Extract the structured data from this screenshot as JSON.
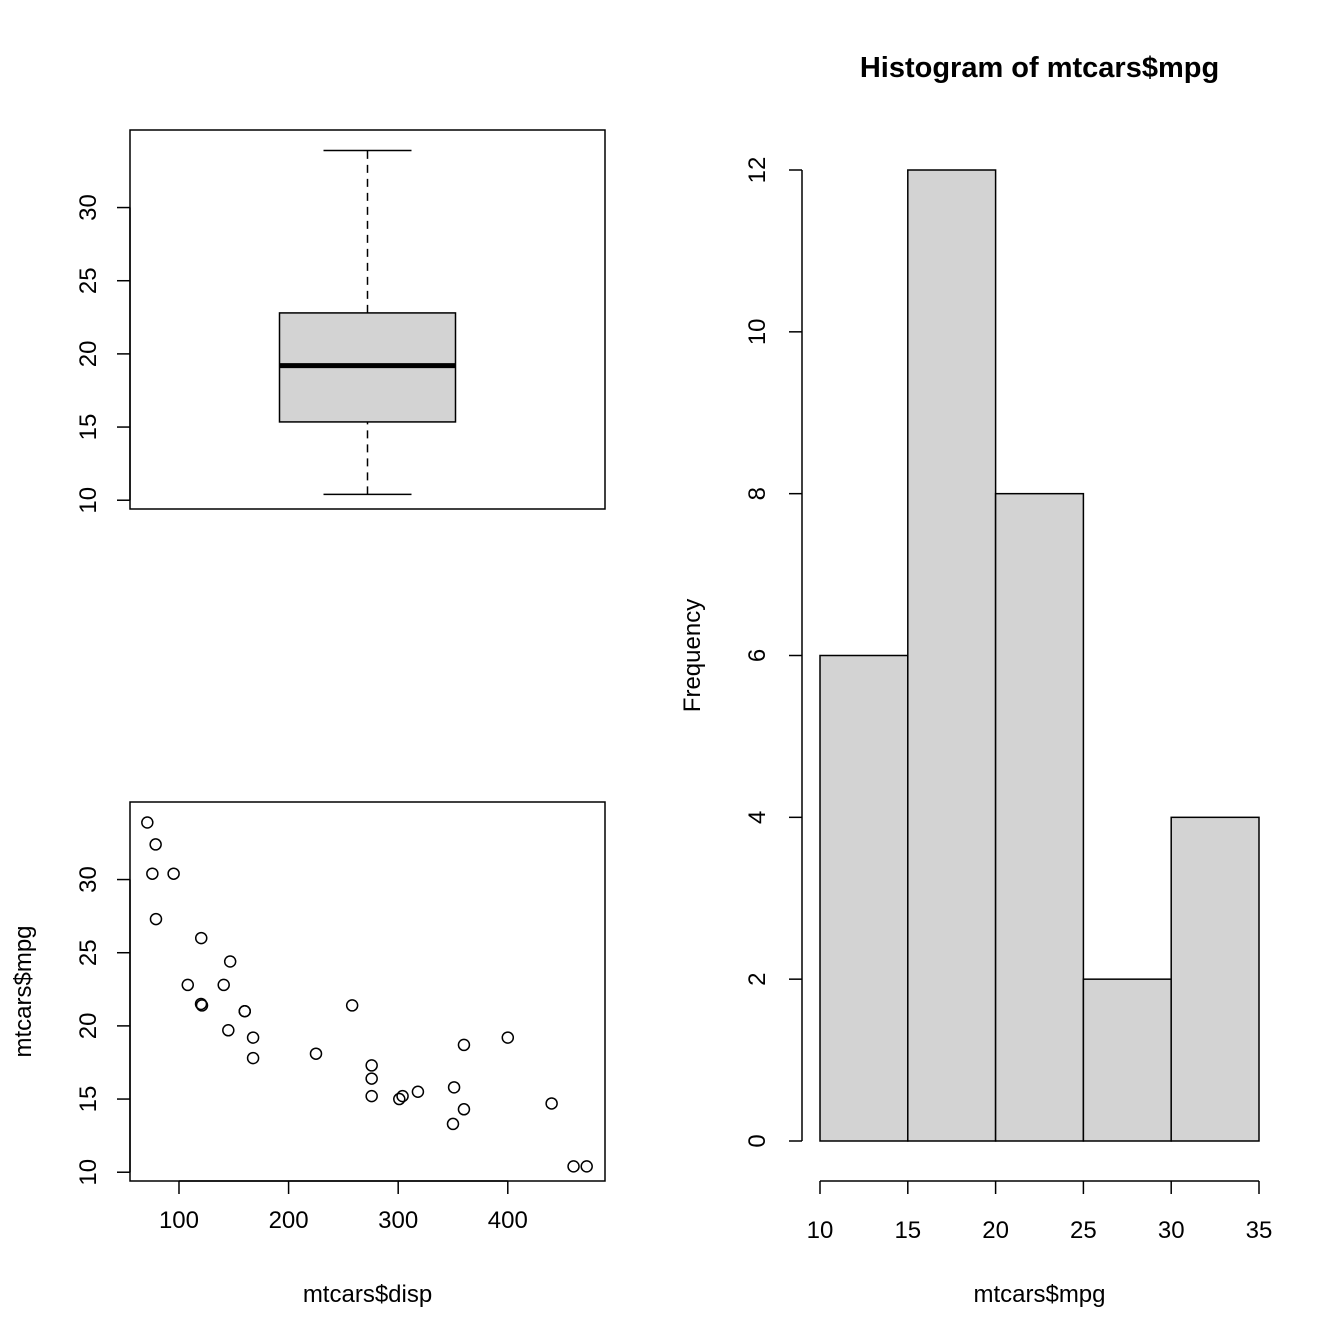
{
  "chart_data": [
    {
      "type": "boxplot",
      "title": "",
      "xlabel": "",
      "ylabel": "",
      "ylim": [
        9.4,
        35.3
      ],
      "y_ticks": [
        10,
        15,
        20,
        25,
        30
      ],
      "stats": {
        "min": 10.4,
        "q1": 15.35,
        "median": 19.2,
        "q3": 22.8,
        "max": 33.9
      },
      "box_fill": "#d3d3d3"
    },
    {
      "type": "scatter",
      "title": "",
      "xlabel": "mtcars$disp",
      "ylabel": "mtcars$mpg",
      "xlim": [
        55.3,
        488.7
      ],
      "ylim": [
        9.4,
        35.3
      ],
      "x_ticks": [
        100,
        200,
        300,
        400
      ],
      "y_ticks": [
        10,
        15,
        20,
        25,
        30
      ],
      "points": [
        {
          "x": 160,
          "y": 21.0
        },
        {
          "x": 160,
          "y": 21.0
        },
        {
          "x": 108,
          "y": 22.8
        },
        {
          "x": 258,
          "y": 21.4
        },
        {
          "x": 360,
          "y": 18.7
        },
        {
          "x": 225,
          "y": 18.1
        },
        {
          "x": 360,
          "y": 14.3
        },
        {
          "x": 146.7,
          "y": 24.4
        },
        {
          "x": 140.8,
          "y": 22.8
        },
        {
          "x": 167.6,
          "y": 19.2
        },
        {
          "x": 167.6,
          "y": 17.8
        },
        {
          "x": 275.8,
          "y": 16.4
        },
        {
          "x": 275.8,
          "y": 17.3
        },
        {
          "x": 275.8,
          "y": 15.2
        },
        {
          "x": 472,
          "y": 10.4
        },
        {
          "x": 460,
          "y": 10.4
        },
        {
          "x": 440,
          "y": 14.7
        },
        {
          "x": 78.7,
          "y": 32.4
        },
        {
          "x": 75.7,
          "y": 30.4
        },
        {
          "x": 71.1,
          "y": 33.9
        },
        {
          "x": 120.1,
          "y": 21.5
        },
        {
          "x": 318,
          "y": 15.5
        },
        {
          "x": 304,
          "y": 15.2
        },
        {
          "x": 350,
          "y": 13.3
        },
        {
          "x": 400,
          "y": 19.2
        },
        {
          "x": 79,
          "y": 27.3
        },
        {
          "x": 120.3,
          "y": 26.0
        },
        {
          "x": 95.1,
          "y": 30.4
        },
        {
          "x": 351,
          "y": 15.8
        },
        {
          "x": 145,
          "y": 19.7
        },
        {
          "x": 301,
          "y": 15.0
        },
        {
          "x": 121,
          "y": 21.4
        }
      ]
    },
    {
      "type": "histogram",
      "title": "Histogram of mtcars$mpg",
      "xlabel": "mtcars$mpg",
      "ylabel": "Frequency",
      "xlim": [
        10,
        35
      ],
      "ylim": [
        0,
        12
      ],
      "x_ticks": [
        10,
        15,
        20,
        25,
        30,
        35
      ],
      "y_ticks": [
        0,
        2,
        4,
        6,
        8,
        10,
        12
      ],
      "bins": [
        {
          "from": 10,
          "to": 15,
          "count": 6
        },
        {
          "from": 15,
          "to": 20,
          "count": 12
        },
        {
          "from": 20,
          "to": 25,
          "count": 8
        },
        {
          "from": 25,
          "to": 30,
          "count": 2
        },
        {
          "from": 30,
          "to": 35,
          "count": 4
        }
      ],
      "bar_fill": "#d3d3d3"
    }
  ]
}
